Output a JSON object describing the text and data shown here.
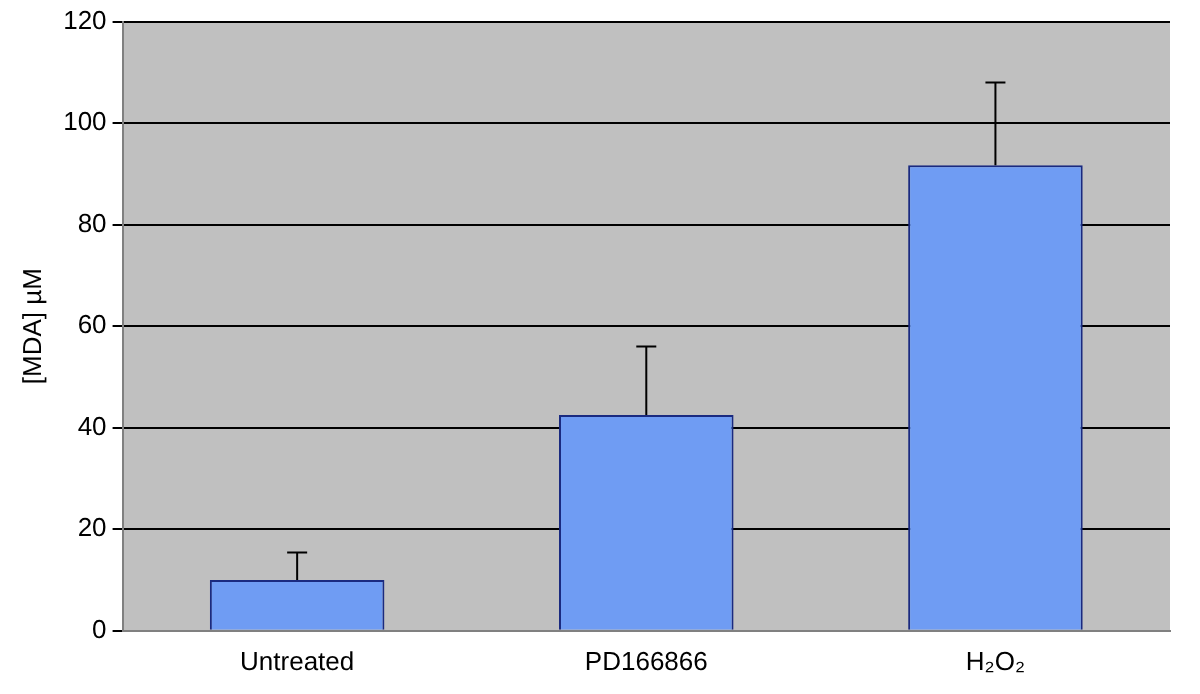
{
  "chart_data": {
    "type": "bar",
    "ylabel": "[MDA] µM",
    "categories": [
      "Untreated",
      "PD166866",
      "H₂O₂"
    ],
    "series": [
      {
        "color": "#6f9cf3",
        "values": [
          10,
          42.5,
          91.7
        ],
        "errors": [
          [
            10,
            15.4
          ],
          [
            42.5,
            56
          ],
          [
            91.7,
            108
          ]
        ]
      }
    ],
    "ylim": [
      0,
      120
    ],
    "yticks": [
      0,
      20,
      40,
      60,
      80,
      100,
      120
    ],
    "grid": "y",
    "legend": false
  }
}
